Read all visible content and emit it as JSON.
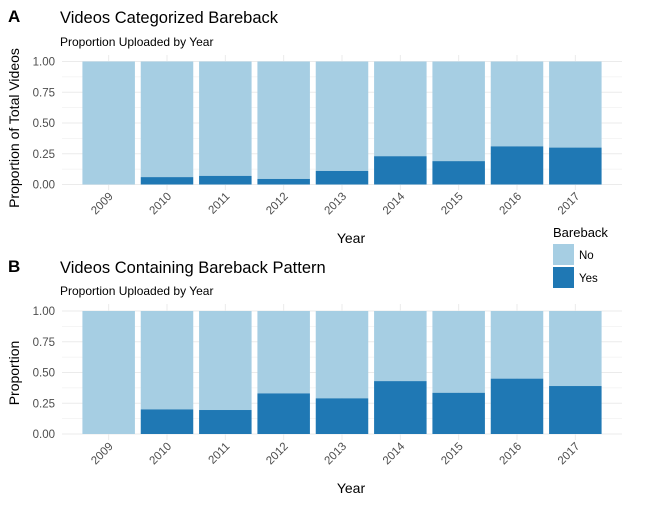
{
  "panels": [
    {
      "tag": "A",
      "title": "Videos Categorized Bareback",
      "subtitle": "Proportion Uploaded by Year",
      "xlabel": "Year",
      "ylabel": "Proportion of Total Videos"
    },
    {
      "tag": "B",
      "title": "Videos Containing Bareback Pattern",
      "subtitle": "Proportion Uploaded by Year",
      "xlabel": "Year",
      "ylabel": "Proportion"
    }
  ],
  "legend": {
    "title": "Bareback",
    "items": [
      {
        "label": "No",
        "color": "#a6cee3"
      },
      {
        "label": "Yes",
        "color": "#1f78b4"
      }
    ]
  },
  "colors": {
    "no": "#a6cee3",
    "yes": "#1f78b4",
    "grid": "#ebebeb"
  },
  "chart_data": [
    {
      "type": "bar",
      "stacked": "proportion",
      "title": "Videos Categorized Bareback",
      "subtitle": "Proportion Uploaded by Year",
      "xlabel": "Year",
      "ylabel": "Proportion of Total Videos",
      "categories": [
        "2009",
        "2010",
        "2011",
        "2012",
        "2013",
        "2014",
        "2015",
        "2016",
        "2017"
      ],
      "series": [
        {
          "name": "Yes",
          "values": [
            0.0,
            0.06,
            0.07,
            0.045,
            0.11,
            0.23,
            0.19,
            0.31,
            0.3
          ]
        },
        {
          "name": "No",
          "values": [
            1.0,
            0.94,
            0.93,
            0.955,
            0.89,
            0.77,
            0.81,
            0.69,
            0.7
          ]
        }
      ],
      "ylim": [
        0,
        1
      ],
      "yticks": [
        "0.00",
        "0.25",
        "0.50",
        "0.75",
        "1.00"
      ],
      "grid": true,
      "legend": "right"
    },
    {
      "type": "bar",
      "stacked": "proportion",
      "title": "Videos Containing Bareback Pattern",
      "subtitle": "Proportion Uploaded by Year",
      "xlabel": "Year",
      "ylabel": "Proportion",
      "categories": [
        "2009",
        "2010",
        "2011",
        "2012",
        "2013",
        "2014",
        "2015",
        "2016",
        "2017"
      ],
      "series": [
        {
          "name": "Yes",
          "values": [
            0.0,
            0.2,
            0.195,
            0.33,
            0.29,
            0.43,
            0.335,
            0.45,
            0.39
          ]
        },
        {
          "name": "No",
          "values": [
            1.0,
            0.8,
            0.805,
            0.67,
            0.71,
            0.57,
            0.665,
            0.55,
            0.61
          ]
        }
      ],
      "ylim": [
        0,
        1
      ],
      "yticks": [
        "0.00",
        "0.25",
        "0.50",
        "0.75",
        "1.00"
      ],
      "grid": true,
      "legend": "right"
    }
  ]
}
